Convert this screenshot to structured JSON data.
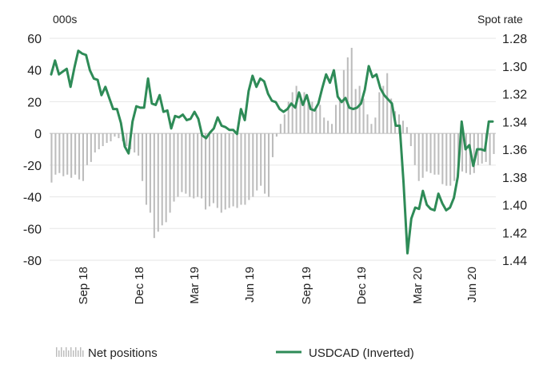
{
  "chart_data": {
    "type": "bar+line",
    "left_axis": {
      "unit_label": "000s",
      "ticks": [
        60,
        40,
        20,
        0,
        -20,
        -40,
        -60,
        -80
      ],
      "ylim": [
        -80,
        60
      ]
    },
    "right_axis": {
      "unit_label": "Spot rate",
      "ticks": [
        "1.28",
        "1.30",
        "1.32",
        "1.34",
        "1.36",
        "1.38",
        "1.40",
        "1.42",
        "1.44"
      ],
      "ylim": [
        1.44,
        1.28
      ],
      "inverted": true
    },
    "x_ticks": [
      "Sep 18",
      "Dec 18",
      "Mar 19",
      "Jun 19",
      "Sep 19",
      "Dec 19",
      "Mar 20",
      "Jun 20"
    ],
    "grid": true,
    "legend_position": "bottom",
    "series": [
      {
        "name": "Net positions",
        "axis": "left",
        "color": "#bdbdbd",
        "kind": "bar",
        "values": [
          -31,
          -26,
          -25,
          -27,
          -26,
          -28,
          -26,
          -29,
          -30,
          -20,
          -18,
          -12,
          -10,
          -8,
          -6,
          -5,
          -2,
          -3,
          -5,
          -8,
          -10,
          -12,
          -14,
          -30,
          -45,
          -50,
          -66,
          -62,
          -58,
          -56,
          -50,
          -43,
          -40,
          -37,
          -38,
          -40,
          -41,
          -40,
          -41,
          -48,
          -46,
          -44,
          -47,
          -50,
          -48,
          -47,
          -46,
          -47,
          -45,
          -45,
          -42,
          -40,
          -36,
          -33,
          -38,
          -40,
          -15,
          -2,
          6,
          12,
          20,
          26,
          30,
          25,
          26,
          22,
          20,
          15,
          18,
          10,
          8,
          6,
          18,
          22,
          40,
          48,
          54,
          28,
          30,
          22,
          12,
          6,
          10,
          26,
          30,
          38,
          22,
          14,
          12,
          8,
          4,
          -8,
          -20,
          -30,
          -28,
          -24,
          -25,
          -26,
          -26,
          -32,
          -33,
          -33,
          -30,
          -27,
          -24,
          -25,
          -26,
          -25,
          -20,
          -19,
          -18,
          -20,
          -13
        ]
      },
      {
        "name": "USDCAD (Inverted)",
        "axis": "right",
        "color": "#2e8b57",
        "kind": "line",
        "values": [
          1.306,
          1.296,
          1.306,
          1.304,
          1.302,
          1.315,
          1.301,
          1.289,
          1.291,
          1.292,
          1.303,
          1.309,
          1.31,
          1.321,
          1.315,
          1.323,
          1.331,
          1.331,
          1.341,
          1.358,
          1.363,
          1.34,
          1.329,
          1.33,
          1.33,
          1.309,
          1.327,
          1.328,
          1.321,
          1.333,
          1.332,
          1.345,
          1.336,
          1.337,
          1.335,
          1.339,
          1.338,
          1.333,
          1.338,
          1.35,
          1.352,
          1.348,
          1.345,
          1.337,
          1.343,
          1.344,
          1.346,
          1.346,
          1.349,
          1.331,
          1.339,
          1.318,
          1.307,
          1.315,
          1.309,
          1.311,
          1.32,
          1.325,
          1.326,
          1.331,
          1.333,
          1.331,
          1.327,
          1.33,
          1.319,
          1.328,
          1.321,
          1.331,
          1.332,
          1.327,
          1.316,
          1.306,
          1.312,
          1.303,
          1.322,
          1.326,
          1.323,
          1.33,
          1.331,
          1.33,
          1.327,
          1.317,
          1.3,
          1.308,
          1.306,
          1.316,
          1.321,
          1.324,
          1.327,
          1.343,
          1.343,
          1.384,
          1.435,
          1.41,
          1.402,
          1.403,
          1.39,
          1.4,
          1.403,
          1.404,
          1.392,
          1.399,
          1.404,
          1.402,
          1.395,
          1.38,
          1.34,
          1.36,
          1.357,
          1.372,
          1.36,
          1.36,
          1.361,
          1.34,
          1.34
        ]
      }
    ]
  },
  "legend": {
    "items": [
      {
        "label": "Net positions"
      },
      {
        "label": "USDCAD (Inverted)"
      }
    ]
  }
}
